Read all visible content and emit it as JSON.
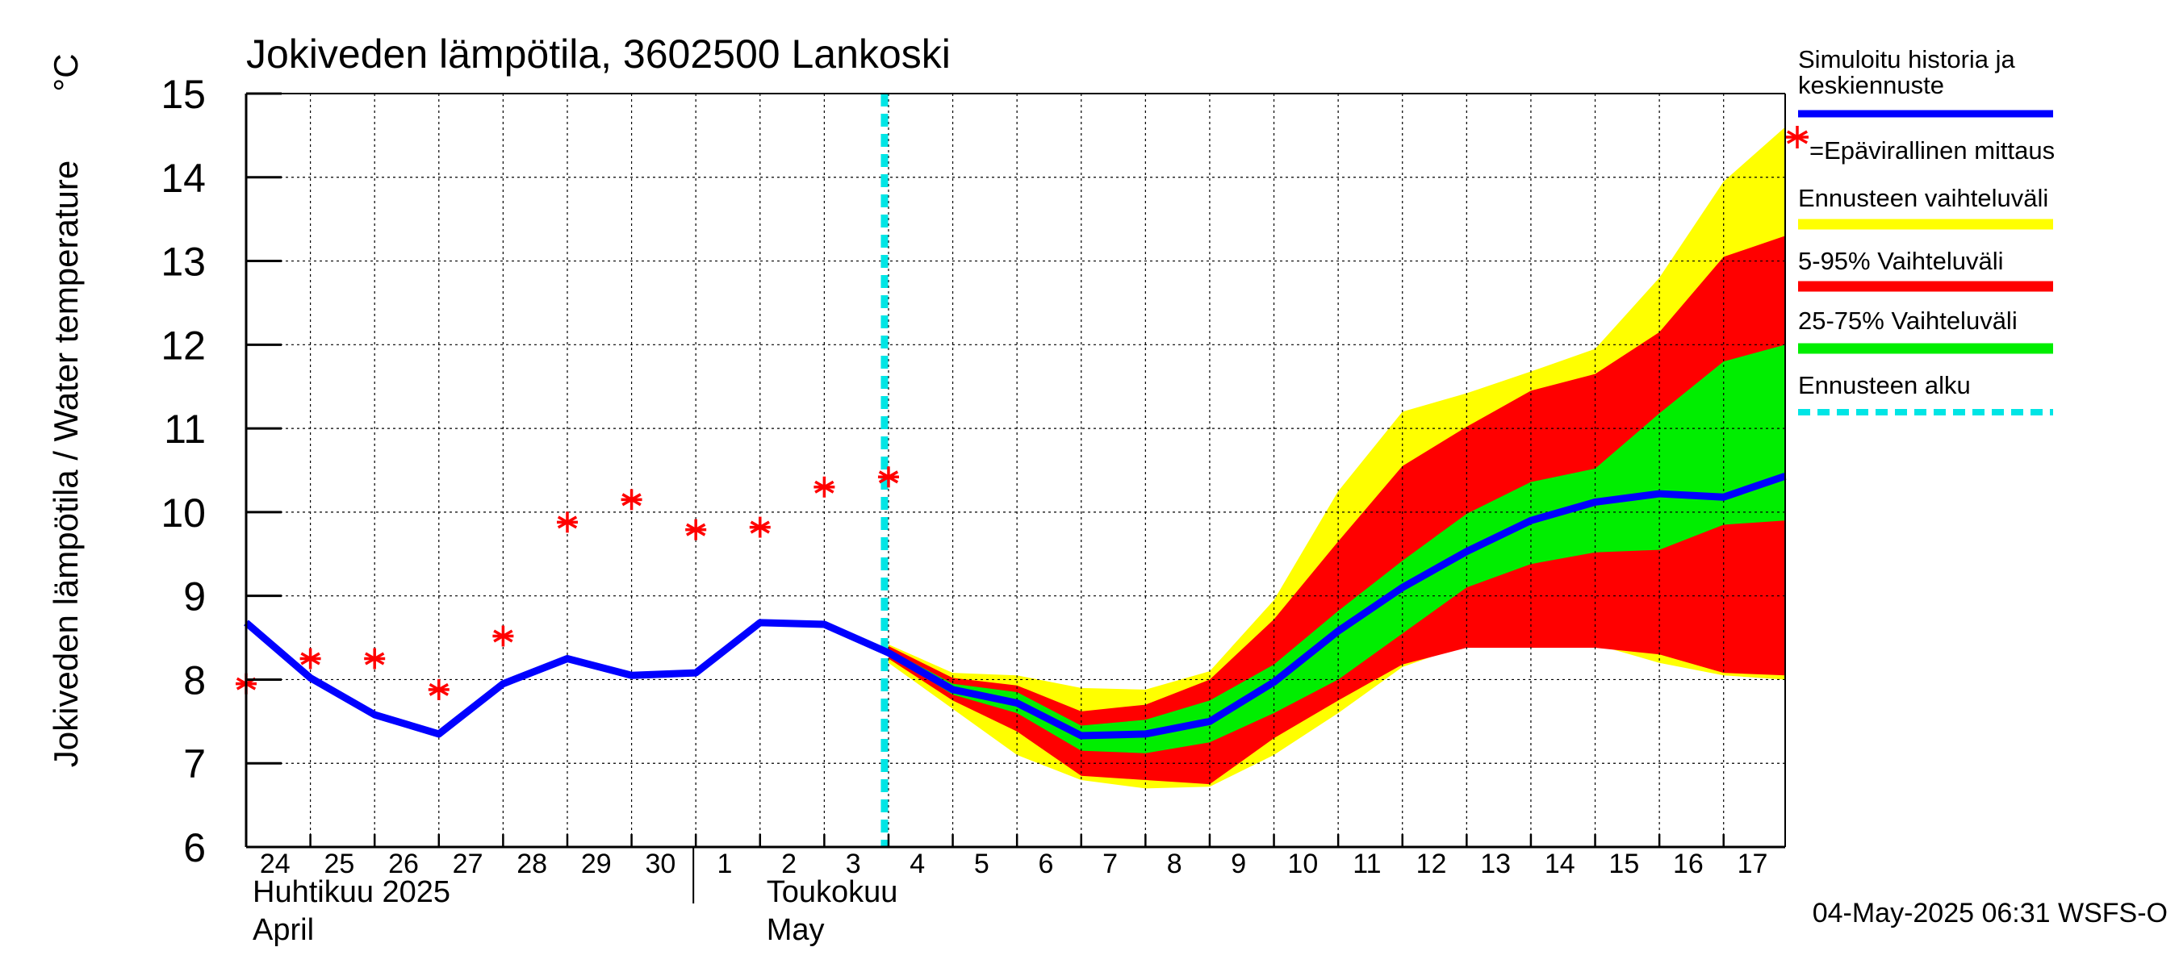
{
  "chart_data": {
    "type": "line",
    "title": "Jokiveden lämpötila, 3602500 Lankoski",
    "ylabel": "Jokiveden lämpötila / Water temperature",
    "yunit": "°C",
    "ylim": [
      6,
      15
    ],
    "yticks": [
      6,
      7,
      8,
      9,
      10,
      11,
      12,
      13,
      14,
      15
    ],
    "xlim": [
      "2025-04-24",
      "2025-05-17T23:00"
    ],
    "grid": true,
    "day_labels": [
      {
        "date": "2025-04-24",
        "label": "24"
      },
      {
        "date": "2025-04-25",
        "label": "25"
      },
      {
        "date": "2025-04-26",
        "label": "26"
      },
      {
        "date": "2025-04-27",
        "label": "27"
      },
      {
        "date": "2025-04-28",
        "label": "28"
      },
      {
        "date": "2025-04-29",
        "label": "29"
      },
      {
        "date": "2025-04-30",
        "label": "30"
      },
      {
        "date": "2025-05-01",
        "label": "1"
      },
      {
        "date": "2025-05-02",
        "label": "2"
      },
      {
        "date": "2025-05-03",
        "label": "3"
      },
      {
        "date": "2025-05-04",
        "label": "4"
      },
      {
        "date": "2025-05-05",
        "label": "5"
      },
      {
        "date": "2025-05-06",
        "label": "6"
      },
      {
        "date": "2025-05-07",
        "label": "7"
      },
      {
        "date": "2025-05-08",
        "label": "8"
      },
      {
        "date": "2025-05-09",
        "label": "9"
      },
      {
        "date": "2025-05-10",
        "label": "10"
      },
      {
        "date": "2025-05-11",
        "label": "11"
      },
      {
        "date": "2025-05-12",
        "label": "12"
      },
      {
        "date": "2025-05-13",
        "label": "13"
      },
      {
        "date": "2025-05-14",
        "label": "14"
      },
      {
        "date": "2025-05-15",
        "label": "15"
      },
      {
        "date": "2025-05-16",
        "label": "16"
      },
      {
        "date": "2025-05-17",
        "label": "17"
      }
    ],
    "month_labels": [
      {
        "date": "2025-04-24",
        "fi": "Huhtikuu  2025",
        "en": "April"
      },
      {
        "date": "2025-05-02",
        "fi": "Toukokuu",
        "en": "May"
      }
    ],
    "month_divider": "2025-05-01",
    "forecast_start": "2025-05-04",
    "series": [
      {
        "name": "Simuloitu historia ja keskiennuste",
        "color": "#0000ff",
        "x": [
          "2025-04-24",
          "2025-04-25",
          "2025-04-26",
          "2025-04-27",
          "2025-04-28",
          "2025-04-29",
          "2025-04-30",
          "2025-05-01",
          "2025-05-02",
          "2025-05-03",
          "2025-05-04",
          "2025-05-05",
          "2025-05-06",
          "2025-05-07",
          "2025-05-08",
          "2025-05-09",
          "2025-05-10",
          "2025-05-11",
          "2025-05-12",
          "2025-05-13",
          "2025-05-14",
          "2025-05-15",
          "2025-05-16",
          "2025-05-17",
          "2025-05-17T23:00"
        ],
        "y": [
          8.68,
          8.02,
          7.58,
          7.35,
          7.95,
          8.25,
          8.05,
          8.08,
          8.68,
          8.66,
          8.32,
          7.88,
          7.72,
          7.33,
          7.35,
          7.5,
          7.97,
          8.58,
          9.1,
          9.53,
          9.9,
          10.12,
          10.22,
          10.18,
          10.43
        ]
      }
    ],
    "measurements": {
      "name": "Epävirallinen mittaus",
      "color": "#ff0000",
      "x": [
        "2025-04-24",
        "2025-04-25",
        "2025-04-26",
        "2025-04-27",
        "2025-04-28",
        "2025-04-29",
        "2025-04-30",
        "2025-05-01",
        "2025-05-02",
        "2025-05-03",
        "2025-05-04"
      ],
      "y": [
        7.95,
        8.25,
        8.25,
        7.88,
        8.52,
        9.88,
        10.15,
        9.79,
        9.82,
        10.3,
        10.42
      ]
    },
    "bands": {
      "x": [
        "2025-05-04",
        "2025-05-05",
        "2025-05-06",
        "2025-05-07",
        "2025-05-08",
        "2025-05-09",
        "2025-05-10",
        "2025-05-11",
        "2025-05-12",
        "2025-05-13",
        "2025-05-14",
        "2025-05-15",
        "2025-05-16",
        "2025-05-17",
        "2025-05-17T23:00"
      ],
      "full": {
        "name": "Ennusteen vaihteluväli",
        "color": "#ffff00",
        "low": [
          8.2,
          7.65,
          7.1,
          6.8,
          6.7,
          6.72,
          7.1,
          7.6,
          8.15,
          8.42,
          8.42,
          8.42,
          8.2,
          8.05,
          8.0
        ],
        "high": [
          8.42,
          8.08,
          8.05,
          7.9,
          7.88,
          8.1,
          8.95,
          10.25,
          11.2,
          11.42,
          11.68,
          11.95,
          12.8,
          13.95,
          14.6
        ]
      },
      "p5_95": {
        "name": "5-95% Vaihteluväli",
        "color": "#ff0000",
        "low": [
          8.25,
          7.75,
          7.38,
          6.85,
          6.8,
          6.75,
          7.3,
          7.75,
          8.18,
          8.38,
          8.38,
          8.38,
          8.3,
          8.08,
          8.05
        ],
        "high": [
          8.4,
          8.02,
          7.93,
          7.62,
          7.7,
          8.0,
          8.72,
          9.65,
          10.55,
          11.02,
          11.45,
          11.65,
          12.15,
          13.05,
          13.3
        ]
      },
      "p25_75": {
        "name": "25-75% Vaihteluväli",
        "color": "#00ee00",
        "low": [
          8.3,
          7.82,
          7.6,
          7.15,
          7.12,
          7.25,
          7.6,
          8.0,
          8.55,
          9.1,
          9.38,
          9.52,
          9.55,
          9.85,
          9.9
        ],
        "high": [
          8.36,
          7.95,
          7.85,
          7.45,
          7.52,
          7.75,
          8.18,
          8.82,
          9.42,
          9.98,
          10.36,
          10.52,
          11.18,
          11.8,
          12.0
        ]
      }
    },
    "legend": {
      "placement": "right",
      "items": [
        {
          "label": "Simuloitu historia ja keskiennuste",
          "color": "#0000ff",
          "kind": "line"
        },
        {
          "label": "=Epävirallinen mittaus",
          "color": "#ff0000",
          "kind": "marker"
        },
        {
          "label": "Ennusteen vaihteluväli",
          "color": "#ffff00",
          "kind": "line"
        },
        {
          "label": "5-95% Vaihteluväli",
          "color": "#ff0000",
          "kind": "line"
        },
        {
          "label": "25-75% Vaihteluväli",
          "color": "#00ee00",
          "kind": "line"
        },
        {
          "label": "Ennusteen alku",
          "color": "#00e5e5",
          "kind": "dashed"
        }
      ]
    },
    "footer": "04-May-2025 06:31 WSFS-O"
  }
}
